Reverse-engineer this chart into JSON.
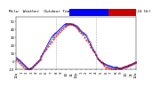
{
  "title": "Milw  Weather  Outdoor Temp  vs  Wind Chill  per Min  (24 Hr)",
  "background_color": "#ffffff",
  "temp_color": "#0000cc",
  "windchill_color": "#cc0000",
  "legend_box_temp": "#0000ff",
  "legend_box_wind": "#cc0000",
  "ylim": [
    -10,
    55
  ],
  "xlim": [
    0,
    1440
  ],
  "vlines": [
    480,
    960
  ],
  "vline_color": "#999999",
  "tick_label_fontsize": 2.8,
  "title_fontsize": 3.2,
  "temp_data": [
    [
      0,
      5
    ],
    [
      10,
      4
    ],
    [
      20,
      3
    ],
    [
      30,
      2
    ],
    [
      40,
      1
    ],
    [
      50,
      0
    ],
    [
      60,
      -1
    ],
    [
      70,
      -2
    ],
    [
      80,
      -3
    ],
    [
      90,
      -4
    ],
    [
      100,
      -5
    ],
    [
      110,
      -6
    ],
    [
      120,
      -7
    ],
    [
      130,
      -8
    ],
    [
      140,
      -9
    ],
    [
      150,
      -9
    ],
    [
      160,
      -9
    ],
    [
      170,
      -8
    ],
    [
      180,
      -8
    ],
    [
      190,
      -7
    ],
    [
      200,
      -6
    ],
    [
      210,
      -5
    ],
    [
      220,
      -4
    ],
    [
      230,
      -3
    ],
    [
      240,
      -2
    ],
    [
      250,
      -1
    ],
    [
      260,
      0
    ],
    [
      270,
      1
    ],
    [
      280,
      2
    ],
    [
      290,
      4
    ],
    [
      300,
      6
    ],
    [
      310,
      8
    ],
    [
      320,
      10
    ],
    [
      330,
      12
    ],
    [
      340,
      14
    ],
    [
      350,
      16
    ],
    [
      360,
      18
    ],
    [
      370,
      20
    ],
    [
      380,
      22
    ],
    [
      390,
      24
    ],
    [
      400,
      26
    ],
    [
      410,
      28
    ],
    [
      420,
      30
    ],
    [
      430,
      31
    ],
    [
      440,
      32
    ],
    [
      450,
      33
    ],
    [
      460,
      34
    ],
    [
      470,
      35
    ],
    [
      480,
      36
    ],
    [
      490,
      37
    ],
    [
      500,
      38
    ],
    [
      510,
      39
    ],
    [
      520,
      40
    ],
    [
      530,
      41
    ],
    [
      540,
      42
    ],
    [
      550,
      43
    ],
    [
      560,
      44
    ],
    [
      570,
      45
    ],
    [
      580,
      46
    ],
    [
      590,
      46
    ],
    [
      600,
      47
    ],
    [
      610,
      47
    ],
    [
      620,
      47
    ],
    [
      630,
      47
    ],
    [
      640,
      47
    ],
    [
      650,
      47
    ],
    [
      660,
      46
    ],
    [
      670,
      46
    ],
    [
      680,
      46
    ],
    [
      690,
      45
    ],
    [
      700,
      45
    ],
    [
      710,
      44
    ],
    [
      720,
      44
    ],
    [
      730,
      43
    ],
    [
      740,
      42
    ],
    [
      750,
      41
    ],
    [
      760,
      40
    ],
    [
      770,
      39
    ],
    [
      780,
      38
    ],
    [
      790,
      37
    ],
    [
      800,
      36
    ],
    [
      810,
      35
    ],
    [
      820,
      34
    ],
    [
      830,
      33
    ],
    [
      840,
      32
    ],
    [
      850,
      30
    ],
    [
      860,
      28
    ],
    [
      870,
      26
    ],
    [
      880,
      24
    ],
    [
      890,
      22
    ],
    [
      900,
      20
    ],
    [
      910,
      18
    ],
    [
      920,
      16
    ],
    [
      930,
      14
    ],
    [
      940,
      12
    ],
    [
      950,
      10
    ],
    [
      960,
      8
    ],
    [
      970,
      6
    ],
    [
      980,
      4
    ],
    [
      990,
      2
    ],
    [
      1000,
      1
    ],
    [
      1010,
      0
    ],
    [
      1020,
      -1
    ],
    [
      1030,
      -1
    ],
    [
      1040,
      -2
    ],
    [
      1050,
      -2
    ],
    [
      1060,
      -3
    ],
    [
      1070,
      -3
    ],
    [
      1080,
      -4
    ],
    [
      1090,
      -4
    ],
    [
      1100,
      -5
    ],
    [
      1110,
      -5
    ],
    [
      1120,
      -5
    ],
    [
      1130,
      -6
    ],
    [
      1140,
      -6
    ],
    [
      1150,
      -6
    ],
    [
      1160,
      -7
    ],
    [
      1170,
      -7
    ],
    [
      1180,
      -7
    ],
    [
      1190,
      -7
    ],
    [
      1200,
      -7
    ],
    [
      1210,
      -7
    ],
    [
      1220,
      -7
    ],
    [
      1230,
      -8
    ],
    [
      1240,
      -8
    ],
    [
      1250,
      -8
    ],
    [
      1260,
      -8
    ],
    [
      1270,
      -8
    ],
    [
      1280,
      -7
    ],
    [
      1290,
      -7
    ],
    [
      1300,
      -7
    ],
    [
      1310,
      -6
    ],
    [
      1320,
      -6
    ],
    [
      1330,
      -6
    ],
    [
      1340,
      -5
    ],
    [
      1350,
      -5
    ],
    [
      1360,
      -5
    ],
    [
      1370,
      -4
    ],
    [
      1380,
      -4
    ],
    [
      1390,
      -3
    ],
    [
      1400,
      -3
    ],
    [
      1410,
      -2
    ],
    [
      1420,
      -2
    ],
    [
      1430,
      -1
    ],
    [
      1440,
      -1
    ]
  ],
  "wind_data": [
    [
      0,
      2
    ],
    [
      20,
      0
    ],
    [
      40,
      -2
    ],
    [
      60,
      -4
    ],
    [
      80,
      -6
    ],
    [
      100,
      -8
    ],
    [
      120,
      -9
    ],
    [
      140,
      -9
    ],
    [
      160,
      -9
    ],
    [
      180,
      -8
    ],
    [
      200,
      -6
    ],
    [
      220,
      -4
    ],
    [
      240,
      -2
    ],
    [
      260,
      0
    ],
    [
      280,
      3
    ],
    [
      300,
      7
    ],
    [
      320,
      10
    ],
    [
      340,
      13
    ],
    [
      360,
      16
    ],
    [
      380,
      19
    ],
    [
      400,
      22
    ],
    [
      420,
      25
    ],
    [
      440,
      28
    ],
    [
      460,
      30
    ],
    [
      480,
      32
    ],
    [
      500,
      34
    ],
    [
      520,
      37
    ],
    [
      540,
      39
    ],
    [
      560,
      41
    ],
    [
      580,
      43
    ],
    [
      600,
      44
    ],
    [
      620,
      45
    ],
    [
      640,
      46
    ],
    [
      660,
      46
    ],
    [
      680,
      45
    ],
    [
      700,
      44
    ],
    [
      720,
      42
    ],
    [
      740,
      40
    ],
    [
      760,
      38
    ],
    [
      780,
      36
    ],
    [
      800,
      33
    ],
    [
      820,
      30
    ],
    [
      840,
      27
    ],
    [
      860,
      24
    ],
    [
      880,
      21
    ],
    [
      900,
      18
    ],
    [
      920,
      15
    ],
    [
      940,
      12
    ],
    [
      960,
      8
    ],
    [
      980,
      4
    ],
    [
      1000,
      1
    ],
    [
      1020,
      -1
    ],
    [
      1040,
      -3
    ],
    [
      1060,
      -5
    ],
    [
      1080,
      -7
    ],
    [
      1100,
      -7
    ],
    [
      1120,
      -8
    ],
    [
      1140,
      -8
    ],
    [
      1160,
      -9
    ],
    [
      1180,
      -9
    ],
    [
      1200,
      -9
    ],
    [
      1220,
      -8
    ],
    [
      1240,
      -8
    ],
    [
      1260,
      -8
    ],
    [
      1280,
      -7
    ],
    [
      1300,
      -6
    ],
    [
      1320,
      -6
    ],
    [
      1340,
      -5
    ],
    [
      1360,
      -4
    ],
    [
      1380,
      -4
    ],
    [
      1400,
      -3
    ],
    [
      1420,
      -2
    ],
    [
      1440,
      -1
    ]
  ],
  "xtick_positions": [
    0,
    60,
    120,
    180,
    240,
    300,
    360,
    420,
    480,
    540,
    600,
    660,
    720,
    780,
    840,
    900,
    960,
    1020,
    1080,
    1140,
    1200,
    1260,
    1320,
    1380,
    1440
  ],
  "xtick_labels": [
    "12a",
    "1",
    "2",
    "3",
    "4",
    "5",
    "6",
    "7",
    "8",
    "9",
    "10",
    "11",
    "12p",
    "1",
    "2",
    "3",
    "4",
    "5",
    "6",
    "7",
    "8",
    "9",
    "10",
    "11",
    "12a"
  ],
  "ytick_positions": [
    -10,
    0,
    10,
    20,
    30,
    40,
    50
  ],
  "ytick_labels": [
    "-10",
    "0",
    "10",
    "20",
    "30",
    "40",
    "50"
  ]
}
